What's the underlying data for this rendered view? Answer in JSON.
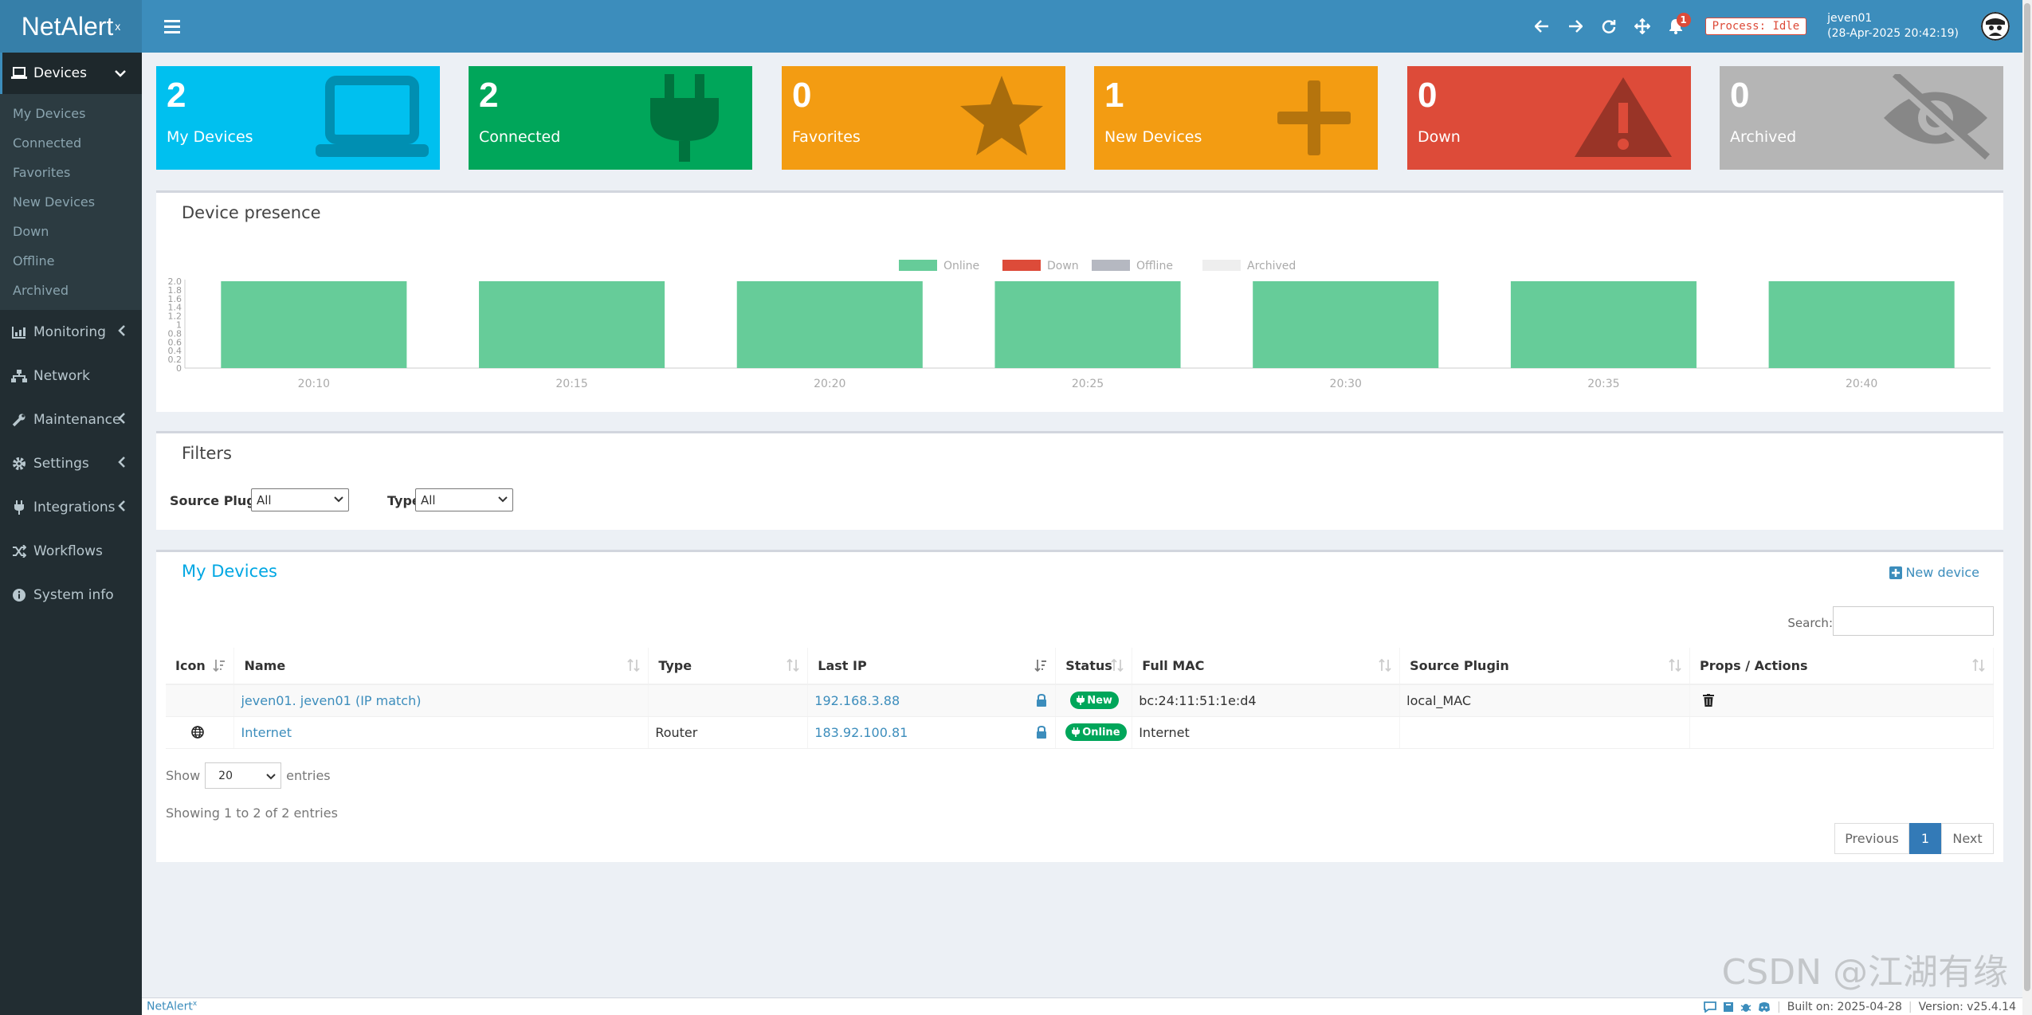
{
  "app": {
    "name": "NetAlert",
    "superscript": "x",
    "footer_brand": "NetAlert",
    "footer_sup": "x"
  },
  "header": {
    "notification_count": "1",
    "process_status": "Process: Idle",
    "username": "jeven01",
    "datetime": "(28-Apr-2025 20:42:19)"
  },
  "sidebar": {
    "devices": "Devices",
    "sub": [
      "My Devices",
      "Connected",
      "Favorites",
      "New Devices",
      "Down",
      "Offline",
      "Archived"
    ],
    "monitoring": "Monitoring",
    "network": "Network",
    "maintenance": "Maintenance",
    "settings": "Settings",
    "integrations": "Integrations",
    "workflows": "Workflows",
    "system_info": "System info"
  },
  "boxes": [
    {
      "value": "2",
      "label": "My Devices",
      "color": "#00c0ef",
      "icon": "laptop-icon"
    },
    {
      "value": "2",
      "label": "Connected",
      "color": "#00a65a",
      "icon": "plug-icon"
    },
    {
      "value": "0",
      "label": "Favorites",
      "color": "#f39c12",
      "icon": "star-icon"
    },
    {
      "value": "1",
      "label": "New Devices",
      "color": "#f39c12",
      "icon": "plus-icon"
    },
    {
      "value": "0",
      "label": "Down",
      "color": "#dd4b39",
      "icon": "warning-icon"
    },
    {
      "value": "0",
      "label": "Archived",
      "color": "#b5b5b5",
      "icon": "eye-slash-icon"
    }
  ],
  "presence": {
    "title": "Device presence"
  },
  "chart_data": {
    "type": "bar",
    "stacked": true,
    "categories": [
      "20:10",
      "20:15",
      "20:20",
      "20:25",
      "20:30",
      "20:35",
      "20:40"
    ],
    "series": [
      {
        "name": "Online",
        "values": [
          2,
          2,
          2,
          2,
          2,
          2,
          2
        ],
        "color": "#66cc99"
      },
      {
        "name": "Down",
        "values": [
          0,
          0,
          0,
          0,
          0,
          0,
          0
        ],
        "color": "#dd4b39"
      },
      {
        "name": "Offline",
        "values": [
          0,
          0,
          0,
          0,
          0,
          0,
          0
        ],
        "color": "#b5b8c1"
      },
      {
        "name": "Archived",
        "values": [
          0,
          0,
          0,
          0,
          0,
          0,
          0
        ],
        "color": "#eeeeee"
      }
    ],
    "ylim": [
      0,
      2
    ],
    "yticks": [
      "0",
      "0.2",
      "0.4",
      "0.6",
      "0.8",
      "1",
      "1.2",
      "1.4",
      "1.6",
      "1.8",
      "2.0"
    ],
    "legend_position": "top-center"
  },
  "filters": {
    "title": "Filters",
    "source_plugin_label": "Source Plugin",
    "source_plugin_value": "All",
    "type_label": "Type",
    "type_value": "All"
  },
  "devices": {
    "title": "My Devices",
    "new_device": "New device",
    "search_label": "Search:",
    "columns": [
      "Icon",
      "Name",
      "Type",
      "Last IP",
      "Status",
      "Full MAC",
      "Source Plugin",
      "Props / Actions"
    ],
    "rows": [
      {
        "icon": "",
        "name": "jeven01. jeven01 (IP match)",
        "type": "",
        "last_ip": "192.168.3.88",
        "status": "New",
        "mac": "bc:24:11:51:1e:d4",
        "plugin": "local_MAC"
      },
      {
        "icon": "globe-icon",
        "name": "Internet",
        "type": "Router",
        "last_ip": "183.92.100.81",
        "status": "Online",
        "mac": "Internet",
        "plugin": ""
      }
    ],
    "show_label": "Show",
    "page_size": "20",
    "entries_label": "entries",
    "showing": "Showing 1 to 2 of 2 entries",
    "prev": "Previous",
    "page": "1",
    "next": "Next"
  },
  "footer": {
    "built": "Built on: 2025-04-28",
    "version": "Version: v25.4.14"
  },
  "watermark": "CSDN @江湖有缘"
}
